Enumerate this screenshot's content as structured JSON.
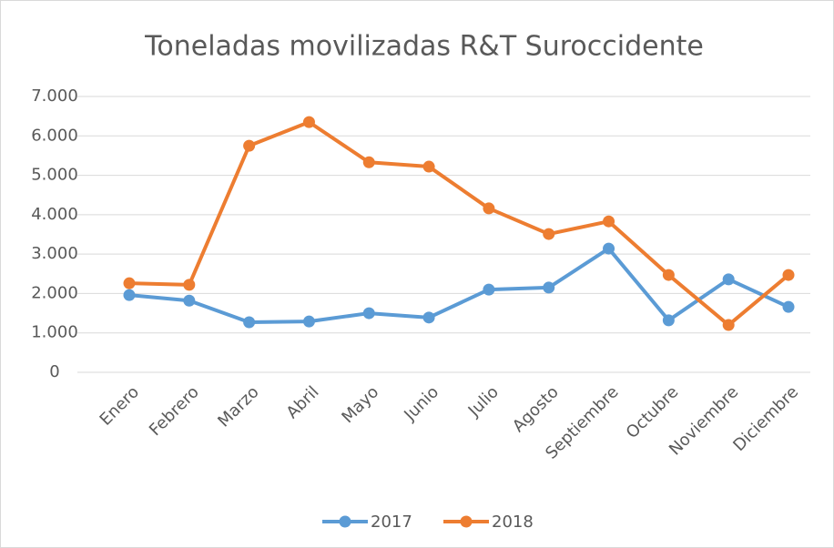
{
  "chart_data": {
    "type": "line",
    "title": "Toneladas movilizadas R&T Suroccidente",
    "categories": [
      "Enero",
      "Febrero",
      "Marzo",
      "Abril",
      "Mayo",
      "Junio",
      "Julio",
      "Agosto",
      "Septiembre",
      "Octubre",
      "Noviembre",
      "Diciembre"
    ],
    "series": [
      {
        "name": "2017",
        "color": "#5b9bd5",
        "values": [
          1960,
          1820,
          1270,
          1290,
          1500,
          1390,
          2100,
          2150,
          3140,
          1320,
          2360,
          1660
        ]
      },
      {
        "name": "2018",
        "color": "#ed7d31",
        "values": [
          2260,
          2220,
          5750,
          6350,
          5330,
          5220,
          4160,
          3510,
          3830,
          2470,
          1200,
          2470
        ]
      }
    ],
    "ylim": [
      0,
      7000
    ],
    "yticks": [
      0,
      {
        "value": 1000,
        "label": "1.000"
      },
      {
        "value": 2000,
        "label": "2.000"
      },
      {
        "value": 3000,
        "label": "3.000"
      },
      {
        "value": 4000,
        "label": "4.000"
      },
      {
        "value": 5000,
        "label": "5.000"
      },
      {
        "value": 6000,
        "label": "6.000"
      },
      {
        "value": 7000,
        "label": "7.000"
      }
    ],
    "grid": true,
    "legend": "bottom"
  }
}
